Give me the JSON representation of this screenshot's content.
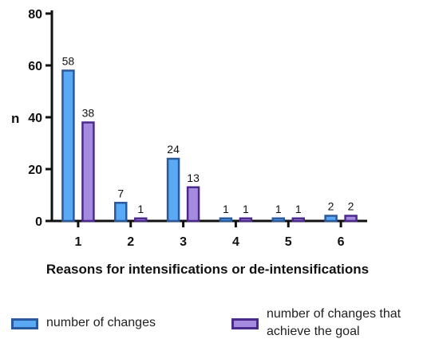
{
  "chart_data": {
    "type": "bar",
    "categories": [
      "1",
      "2",
      "3",
      "4",
      "5",
      "6"
    ],
    "series": [
      {
        "name": "number of changes",
        "values": [
          58,
          7,
          24,
          1,
          1,
          2
        ],
        "fill": "#5aa9f5",
        "stroke": "#2a5a9c"
      },
      {
        "name": "number of changes that achieve the goal",
        "values": [
          38,
          1,
          13,
          1,
          1,
          2
        ],
        "fill": "#a58be0",
        "stroke": "#4b2a8c"
      }
    ],
    "data_labels": [
      [
        "58",
        "7",
        "24",
        "1",
        "1",
        "2"
      ],
      [
        "38",
        "1",
        "13",
        "1",
        "1",
        "2"
      ]
    ],
    "title": "",
    "xlabel": "Reasons for intensifications or de-intensifications",
    "ylabel": "n",
    "ylim": [
      0,
      80
    ],
    "yticks": [
      0,
      20,
      40,
      60,
      80
    ],
    "grid": false,
    "legend_position": "bottom"
  },
  "legend": {
    "items": [
      {
        "label": "number of changes"
      },
      {
        "label_line1": "number of changes that",
        "label_line2": "achieve the goal"
      }
    ]
  }
}
